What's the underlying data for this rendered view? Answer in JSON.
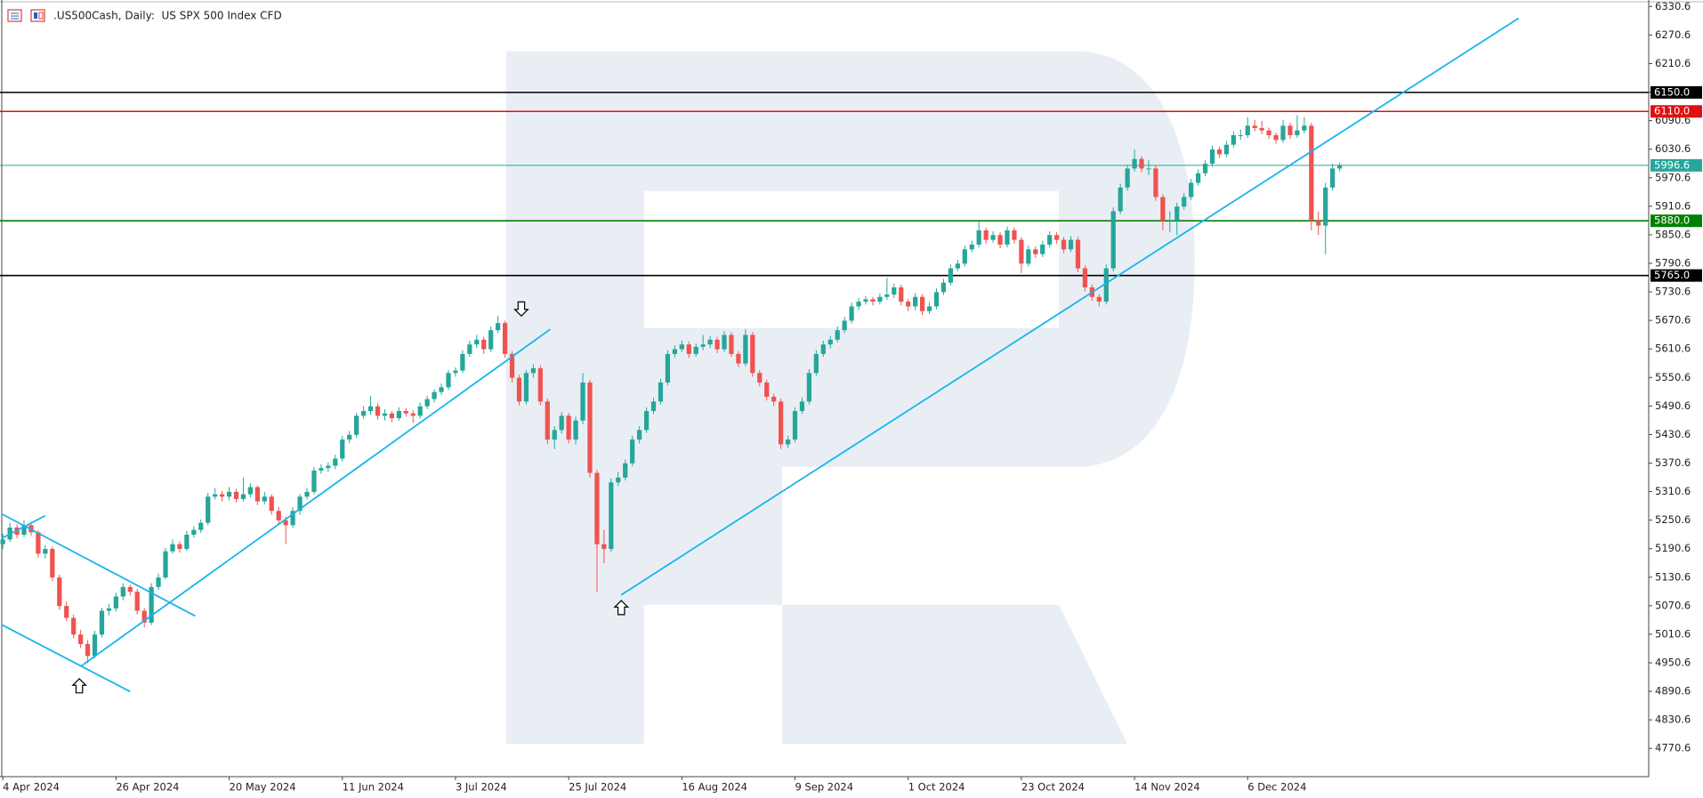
{
  "chart_data": {
    "type": "candlestick",
    "title": ".US500Cash, Daily:  US SPX 500 Index CFD",
    "bull_color": "#26a69a",
    "bear_color": "#ef5350",
    "xlim": [
      -0.4,
      232.7
    ],
    "ylim": [
      4711.2,
      6344.3
    ],
    "yticks": [
      6330.6,
      6270.6,
      6210.6,
      6150.6,
      6090.6,
      6030.6,
      5970.6,
      5910.6,
      5850.6,
      5790.6,
      5730.6,
      5670.6,
      5610.6,
      5550.6,
      5490.6,
      5430.6,
      5370.6,
      5310.6,
      5250.6,
      5190.6,
      5130.6,
      5070.6,
      5010.6,
      4950.6,
      4890.6,
      4830.6,
      4770.6
    ],
    "xticks": [
      {
        "value": 0,
        "label": "4 Apr 2024"
      },
      {
        "value": 16,
        "label": "26 Apr 2024"
      },
      {
        "value": 32,
        "label": "20 May 2024"
      },
      {
        "value": 48,
        "label": "11 Jun 2024"
      },
      {
        "value": 64,
        "label": "3 Jul 2024"
      },
      {
        "value": 80,
        "label": "25 Jul 2024"
      },
      {
        "value": 96,
        "label": "16 Aug 2024"
      },
      {
        "value": 112,
        "label": "9 Sep 2024"
      },
      {
        "value": 128,
        "label": "1 Oct 2024"
      },
      {
        "value": 144,
        "label": "23 Oct 2024"
      },
      {
        "value": 160,
        "label": "14 Nov 2024"
      },
      {
        "value": 176,
        "label": "6 Dec 2024"
      }
    ],
    "levels": [
      {
        "value": 6150,
        "label": "6150.0",
        "color": "#000000"
      },
      {
        "value": 6110,
        "label": "6110.0",
        "color": "#e01010"
      },
      {
        "value": 5996.6,
        "color": "#26a69a"
      },
      {
        "value": 5880,
        "label": "5880.0",
        "color": "#008000"
      },
      {
        "value": 5765,
        "label": "5765.0",
        "color": "#000000"
      }
    ],
    "trendlines": [
      {
        "x": [
          -0.2,
          27.2
        ],
        "y": [
          5264,
          5049
        ],
        "color": "#18b4ec"
      },
      {
        "x": [
          -0.2,
          18
        ],
        "y": [
          5031,
          4890
        ],
        "color": "#18b4ec"
      },
      {
        "x": [
          -0.2,
          6
        ],
        "y": [
          5212,
          5260
        ],
        "color": "#18b4ec"
      },
      {
        "x": [
          11.1,
          77.4
        ],
        "y": [
          4944,
          5652
        ],
        "color": "#18b4ec"
      },
      {
        "x": [
          87.4,
          214.3
        ],
        "y": [
          5093,
          6306
        ],
        "color": "#18b4ec"
      }
    ],
    "ohlc": [
      [
        5200,
        5222,
        5190,
        5210
      ],
      [
        5210,
        5245,
        5205,
        5235
      ],
      [
        5235,
        5242,
        5212,
        5220
      ],
      [
        5220,
        5250,
        5215,
        5240
      ],
      [
        5240,
        5246,
        5218,
        5225
      ],
      [
        5225,
        5230,
        5172,
        5180
      ],
      [
        5180,
        5198,
        5170,
        5190
      ],
      [
        5190,
        5195,
        5122,
        5130
      ],
      [
        5130,
        5136,
        5062,
        5070
      ],
      [
        5070,
        5080,
        5038,
        5045
      ],
      [
        5045,
        5052,
        5002,
        5010
      ],
      [
        5010,
        5020,
        4982,
        4990
      ],
      [
        4990,
        4998,
        4950,
        4965
      ],
      [
        4965,
        5018,
        4960,
        5010
      ],
      [
        5010,
        5066,
        5004,
        5060
      ],
      [
        5060,
        5075,
        5050,
        5065
      ],
      [
        5065,
        5098,
        5058,
        5090
      ],
      [
        5090,
        5118,
        5082,
        5110
      ],
      [
        5110,
        5115,
        5092,
        5100
      ],
      [
        5100,
        5106,
        5052,
        5060
      ],
      [
        5060,
        5066,
        5025,
        5035
      ],
      [
        5035,
        5118,
        5030,
        5110
      ],
      [
        5110,
        5138,
        5104,
        5130
      ],
      [
        5130,
        5192,
        5126,
        5185
      ],
      [
        5185,
        5210,
        5180,
        5200
      ],
      [
        5200,
        5206,
        5182,
        5190
      ],
      [
        5190,
        5228,
        5186,
        5220
      ],
      [
        5220,
        5238,
        5214,
        5230
      ],
      [
        5230,
        5252,
        5224,
        5245
      ],
      [
        5245,
        5308,
        5240,
        5300
      ],
      [
        5300,
        5318,
        5294,
        5305
      ],
      [
        5305,
        5312,
        5290,
        5300
      ],
      [
        5300,
        5320,
        5292,
        5310
      ],
      [
        5310,
        5316,
        5288,
        5295
      ],
      [
        5295,
        5340,
        5290,
        5305
      ],
      [
        5305,
        5328,
        5298,
        5320
      ],
      [
        5320,
        5324,
        5282,
        5290
      ],
      [
        5290,
        5310,
        5284,
        5300
      ],
      [
        5300,
        5305,
        5262,
        5270
      ],
      [
        5270,
        5278,
        5240,
        5250
      ],
      [
        5250,
        5258,
        5200,
        5240
      ],
      [
        5240,
        5278,
        5234,
        5270
      ],
      [
        5270,
        5306,
        5262,
        5300
      ],
      [
        5300,
        5318,
        5294,
        5310
      ],
      [
        5310,
        5362,
        5305,
        5355
      ],
      [
        5355,
        5368,
        5348,
        5360
      ],
      [
        5360,
        5372,
        5352,
        5365
      ],
      [
        5365,
        5388,
        5358,
        5380
      ],
      [
        5380,
        5428,
        5374,
        5420
      ],
      [
        5420,
        5438,
        5412,
        5430
      ],
      [
        5430,
        5476,
        5424,
        5470
      ],
      [
        5470,
        5490,
        5464,
        5480
      ],
      [
        5480,
        5512,
        5472,
        5490
      ],
      [
        5490,
        5496,
        5462,
        5470
      ],
      [
        5470,
        5484,
        5460,
        5475
      ],
      [
        5475,
        5480,
        5456,
        5465
      ],
      [
        5465,
        5488,
        5460,
        5480
      ],
      [
        5480,
        5486,
        5468,
        5475
      ],
      [
        5475,
        5482,
        5455,
        5470
      ],
      [
        5470,
        5498,
        5464,
        5490
      ],
      [
        5490,
        5512,
        5484,
        5505
      ],
      [
        5505,
        5526,
        5498,
        5520
      ],
      [
        5520,
        5538,
        5514,
        5530
      ],
      [
        5530,
        5566,
        5524,
        5560
      ],
      [
        5560,
        5572,
        5552,
        5565
      ],
      [
        5565,
        5608,
        5560,
        5600
      ],
      [
        5600,
        5628,
        5594,
        5620
      ],
      [
        5620,
        5640,
        5612,
        5630
      ],
      [
        5630,
        5636,
        5600,
        5610
      ],
      [
        5610,
        5658,
        5604,
        5650
      ],
      [
        5650,
        5680,
        5644,
        5665
      ],
      [
        5665,
        5670,
        5592,
        5600
      ],
      [
        5600,
        5606,
        5540,
        5550
      ],
      [
        5550,
        5556,
        5492,
        5500
      ],
      [
        5500,
        5566,
        5494,
        5560
      ],
      [
        5560,
        5578,
        5550,
        5570
      ],
      [
        5570,
        5576,
        5492,
        5500
      ],
      [
        5500,
        5506,
        5410,
        5420
      ],
      [
        5420,
        5448,
        5400,
        5440
      ],
      [
        5440,
        5478,
        5432,
        5470
      ],
      [
        5470,
        5476,
        5412,
        5420
      ],
      [
        5420,
        5468,
        5410,
        5460
      ],
      [
        5460,
        5560,
        5452,
        5540
      ],
      [
        5540,
        5546,
        5340,
        5350
      ],
      [
        5350,
        5356,
        5100,
        5200
      ],
      [
        5200,
        5230,
        5160,
        5190
      ],
      [
        5190,
        5338,
        5184,
        5330
      ],
      [
        5330,
        5352,
        5322,
        5340
      ],
      [
        5340,
        5378,
        5334,
        5370
      ],
      [
        5370,
        5428,
        5364,
        5420
      ],
      [
        5420,
        5448,
        5412,
        5440
      ],
      [
        5440,
        5488,
        5434,
        5480
      ],
      [
        5480,
        5508,
        5474,
        5500
      ],
      [
        5500,
        5548,
        5494,
        5540
      ],
      [
        5540,
        5608,
        5534,
        5600
      ],
      [
        5600,
        5618,
        5592,
        5610
      ],
      [
        5610,
        5628,
        5604,
        5620
      ],
      [
        5620,
        5626,
        5592,
        5600
      ],
      [
        5600,
        5622,
        5594,
        5615
      ],
      [
        5615,
        5640,
        5608,
        5620
      ],
      [
        5620,
        5638,
        5612,
        5630
      ],
      [
        5630,
        5636,
        5602,
        5610
      ],
      [
        5610,
        5648,
        5604,
        5640
      ],
      [
        5640,
        5646,
        5594,
        5600
      ],
      [
        5600,
        5606,
        5572,
        5580
      ],
      [
        5580,
        5652,
        5574,
        5640
      ],
      [
        5640,
        5646,
        5552,
        5560
      ],
      [
        5560,
        5566,
        5532,
        5540
      ],
      [
        5540,
        5546,
        5502,
        5510
      ],
      [
        5510,
        5516,
        5490,
        5500
      ],
      [
        5500,
        5506,
        5400,
        5410
      ],
      [
        5410,
        5428,
        5402,
        5420
      ],
      [
        5420,
        5488,
        5414,
        5480
      ],
      [
        5480,
        5508,
        5474,
        5500
      ],
      [
        5500,
        5568,
        5494,
        5560
      ],
      [
        5560,
        5608,
        5554,
        5600
      ],
      [
        5600,
        5628,
        5594,
        5620
      ],
      [
        5620,
        5638,
        5612,
        5630
      ],
      [
        5630,
        5658,
        5624,
        5650
      ],
      [
        5650,
        5678,
        5644,
        5670
      ],
      [
        5670,
        5708,
        5664,
        5700
      ],
      [
        5700,
        5718,
        5692,
        5710
      ],
      [
        5710,
        5722,
        5704,
        5715
      ],
      [
        5715,
        5720,
        5702,
        5710
      ],
      [
        5710,
        5728,
        5704,
        5720
      ],
      [
        5720,
        5760,
        5714,
        5725
      ],
      [
        5725,
        5748,
        5718,
        5740
      ],
      [
        5740,
        5746,
        5702,
        5710
      ],
      [
        5710,
        5716,
        5690,
        5700
      ],
      [
        5700,
        5728,
        5692,
        5720
      ],
      [
        5720,
        5726,
        5682,
        5690
      ],
      [
        5690,
        5708,
        5684,
        5700
      ],
      [
        5700,
        5738,
        5694,
        5730
      ],
      [
        5730,
        5758,
        5724,
        5750
      ],
      [
        5750,
        5788,
        5744,
        5780
      ],
      [
        5780,
        5798,
        5774,
        5790
      ],
      [
        5790,
        5828,
        5784,
        5820
      ],
      [
        5820,
        5838,
        5814,
        5830
      ],
      [
        5830,
        5878,
        5824,
        5860
      ],
      [
        5860,
        5866,
        5832,
        5840
      ],
      [
        5840,
        5858,
        5834,
        5850
      ],
      [
        5850,
        5856,
        5822,
        5830
      ],
      [
        5830,
        5868,
        5824,
        5860
      ],
      [
        5860,
        5866,
        5832,
        5840
      ],
      [
        5840,
        5846,
        5770,
        5790
      ],
      [
        5790,
        5828,
        5784,
        5820
      ],
      [
        5820,
        5826,
        5802,
        5810
      ],
      [
        5810,
        5838,
        5804,
        5830
      ],
      [
        5830,
        5858,
        5824,
        5850
      ],
      [
        5850,
        5856,
        5832,
        5840
      ],
      [
        5840,
        5846,
        5812,
        5820
      ],
      [
        5820,
        5848,
        5814,
        5840
      ],
      [
        5840,
        5846,
        5772,
        5780
      ],
      [
        5780,
        5786,
        5732,
        5740
      ],
      [
        5740,
        5746,
        5712,
        5720
      ],
      [
        5720,
        5726,
        5700,
        5710
      ],
      [
        5710,
        5788,
        5704,
        5780
      ],
      [
        5780,
        5908,
        5774,
        5900
      ],
      [
        5900,
        5958,
        5894,
        5950
      ],
      [
        5950,
        5998,
        5944,
        5990
      ],
      [
        5990,
        6030,
        5984,
        6010
      ],
      [
        6010,
        6016,
        5982,
        5990
      ],
      [
        5990,
        6008,
        5976,
        5990
      ],
      [
        5990,
        5996,
        5922,
        5930
      ],
      [
        5930,
        5936,
        5860,
        5880
      ],
      [
        5880,
        5900,
        5856,
        5880
      ],
      [
        5880,
        5918,
        5850,
        5910
      ],
      [
        5910,
        5938,
        5904,
        5930
      ],
      [
        5930,
        5968,
        5924,
        5960
      ],
      [
        5960,
        5988,
        5954,
        5980
      ],
      [
        5980,
        6008,
        5974,
        6000
      ],
      [
        6000,
        6038,
        5994,
        6030
      ],
      [
        6030,
        6036,
        6012,
        6020
      ],
      [
        6020,
        6048,
        6014,
        6040
      ],
      [
        6040,
        6068,
        6034,
        6060
      ],
      [
        6060,
        6072,
        6050,
        6060
      ],
      [
        6060,
        6098,
        6054,
        6080
      ],
      [
        6080,
        6092,
        6068,
        6075
      ],
      [
        6075,
        6090,
        6062,
        6070
      ],
      [
        6070,
        6076,
        6052,
        6060
      ],
      [
        6060,
        6066,
        6042,
        6050
      ],
      [
        6050,
        6092,
        6044,
        6080
      ],
      [
        6080,
        6086,
        6052,
        6060
      ],
      [
        6060,
        6102,
        6054,
        6070
      ],
      [
        6070,
        6098,
        6064,
        6080
      ],
      [
        6080,
        6086,
        5860,
        5880
      ],
      [
        5880,
        5900,
        5850,
        5870
      ],
      [
        5870,
        5960,
        5810,
        5950
      ],
      [
        5950,
        6000,
        5944,
        5990
      ],
      [
        5990,
        6002,
        5984,
        5996.6
      ]
    ]
  }
}
